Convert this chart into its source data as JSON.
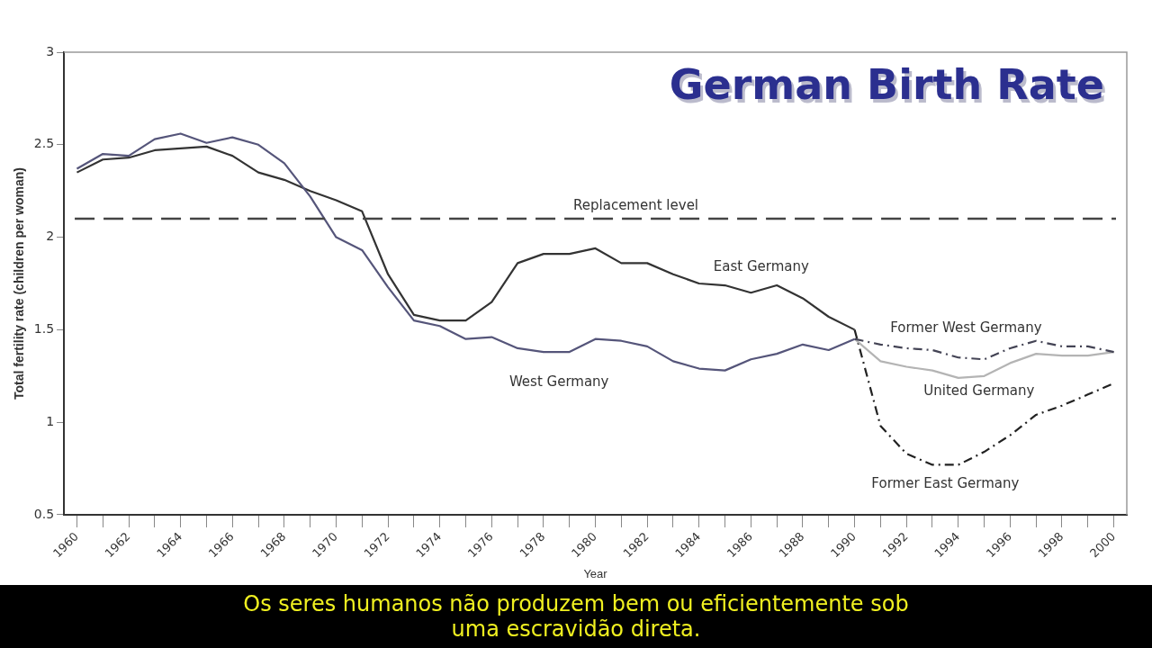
{
  "chart_data": {
    "type": "line",
    "title": "German Birth Rate",
    "xlabel": "Year",
    "ylabel": "Total fertility rate (children per woman)",
    "xlim": [
      1959.5,
      2000.5
    ],
    "xticks": [
      {
        "value": 1960,
        "label": "1960"
      },
      {
        "value": 1961,
        "label": null
      },
      {
        "value": 1962,
        "label": "1962"
      },
      {
        "value": 1963,
        "label": null
      },
      {
        "value": 1964,
        "label": "1964"
      },
      {
        "value": 1965,
        "label": null
      },
      {
        "value": 1966,
        "label": "1966"
      },
      {
        "value": 1967,
        "label": null
      },
      {
        "value": 1968,
        "label": "1968"
      },
      {
        "value": 1969,
        "label": null
      },
      {
        "value": 1970,
        "label": "1970"
      },
      {
        "value": 1971,
        "label": null
      },
      {
        "value": 1972,
        "label": "1972"
      },
      {
        "value": 1973,
        "label": null
      },
      {
        "value": 1974,
        "label": "1974"
      },
      {
        "value": 1975,
        "label": null
      },
      {
        "value": 1976,
        "label": "1976"
      },
      {
        "value": 1977,
        "label": null
      },
      {
        "value": 1978,
        "label": "1978"
      },
      {
        "value": 1979,
        "label": null
      },
      {
        "value": 1980,
        "label": "1980"
      },
      {
        "value": 1981,
        "label": null
      },
      {
        "value": 1982,
        "label": "1982"
      },
      {
        "value": 1983,
        "label": null
      },
      {
        "value": 1984,
        "label": "1984"
      },
      {
        "value": 1985,
        "label": null
      },
      {
        "value": 1986,
        "label": "1986"
      },
      {
        "value": 1987,
        "label": null
      },
      {
        "value": 1988,
        "label": "1988"
      },
      {
        "value": 1989,
        "label": null
      },
      {
        "value": 1990,
        "label": "1990"
      },
      {
        "value": 1991,
        "label": null
      },
      {
        "value": 1992,
        "label": "1992"
      },
      {
        "value": 1993,
        "label": null
      },
      {
        "value": 1994,
        "label": "1994"
      },
      {
        "value": 1995,
        "label": null
      },
      {
        "value": 1996,
        "label": "1996"
      },
      {
        "value": 1997,
        "label": null
      },
      {
        "value": 1998,
        "label": "1998"
      },
      {
        "value": 1999,
        "label": null
      },
      {
        "value": 2000,
        "label": "2000"
      }
    ],
    "ylim": [
      0.5,
      3
    ],
    "yticks": [
      0.5,
      1,
      1.5,
      2,
      2.5,
      3
    ],
    "grid": false,
    "legend": false,
    "marker": "none",
    "series": [
      {
        "name": "West Germany",
        "color": "#55557a",
        "line_style": "solid",
        "x": [
          1960,
          1961,
          1962,
          1963,
          1964,
          1965,
          1966,
          1967,
          1968,
          1969,
          1970,
          1971,
          1972,
          1973,
          1974,
          1975,
          1976,
          1977,
          1978,
          1979,
          1980,
          1981,
          1982,
          1983,
          1984,
          1985,
          1986,
          1987,
          1988,
          1989,
          1990
        ],
        "values": [
          2.37,
          2.45,
          2.44,
          2.53,
          2.56,
          2.51,
          2.54,
          2.5,
          2.4,
          2.22,
          2.0,
          1.93,
          1.73,
          1.55,
          1.52,
          1.45,
          1.46,
          1.4,
          1.38,
          1.38,
          1.45,
          1.44,
          1.41,
          1.33,
          1.29,
          1.28,
          1.34,
          1.37,
          1.42,
          1.39,
          1.45
        ]
      },
      {
        "name": "East Germany",
        "color": "#333333",
        "line_style": "solid",
        "x": [
          1960,
          1961,
          1962,
          1963,
          1964,
          1965,
          1966,
          1967,
          1968,
          1969,
          1970,
          1971,
          1972,
          1973,
          1974,
          1975,
          1976,
          1977,
          1978,
          1979,
          1980,
          1981,
          1982,
          1983,
          1984,
          1985,
          1986,
          1987,
          1988,
          1989,
          1990
        ],
        "values": [
          2.35,
          2.42,
          2.43,
          2.47,
          2.48,
          2.49,
          2.44,
          2.35,
          2.31,
          2.25,
          2.2,
          2.14,
          1.8,
          1.58,
          1.55,
          1.55,
          1.65,
          1.86,
          1.91,
          1.91,
          1.94,
          1.86,
          1.86,
          1.8,
          1.75,
          1.74,
          1.7,
          1.74,
          1.67,
          1.57,
          1.5
        ]
      },
      {
        "name": "Former West Germany",
        "color": "#444455",
        "line_style": "dashed",
        "x": [
          1990,
          1991,
          1992,
          1993,
          1994,
          1995,
          1996,
          1997,
          1998,
          1999,
          2000
        ],
        "values": [
          1.45,
          1.42,
          1.4,
          1.39,
          1.35,
          1.34,
          1.4,
          1.44,
          1.41,
          1.41,
          1.38
        ]
      },
      {
        "name": "United Germany",
        "color": "#b4b4b4",
        "line_style": "solid",
        "x": [
          1990,
          1991,
          1992,
          1993,
          1994,
          1995,
          1996,
          1997,
          1998,
          1999,
          2000
        ],
        "values": [
          1.45,
          1.33,
          1.3,
          1.28,
          1.24,
          1.25,
          1.32,
          1.37,
          1.36,
          1.36,
          1.38
        ]
      },
      {
        "name": "Former East Germany",
        "color": "#222222",
        "line_style": "dashed",
        "x": [
          1990,
          1991,
          1992,
          1993,
          1994,
          1995,
          1996,
          1997,
          1998,
          1999,
          2000
        ],
        "values": [
          1.5,
          0.98,
          0.83,
          0.77,
          0.77,
          0.84,
          0.93,
          1.04,
          1.09,
          1.15,
          1.21
        ]
      }
    ],
    "ref_lines": [
      {
        "axis": "y",
        "value": 2.1,
        "label": "Replacement level",
        "color": "#444444",
        "line_style": "dashed"
      }
    ],
    "annotations": [
      "Os seres humanos não produzem bem ou eficientemente sob uma escravidão direta."
    ]
  }
}
